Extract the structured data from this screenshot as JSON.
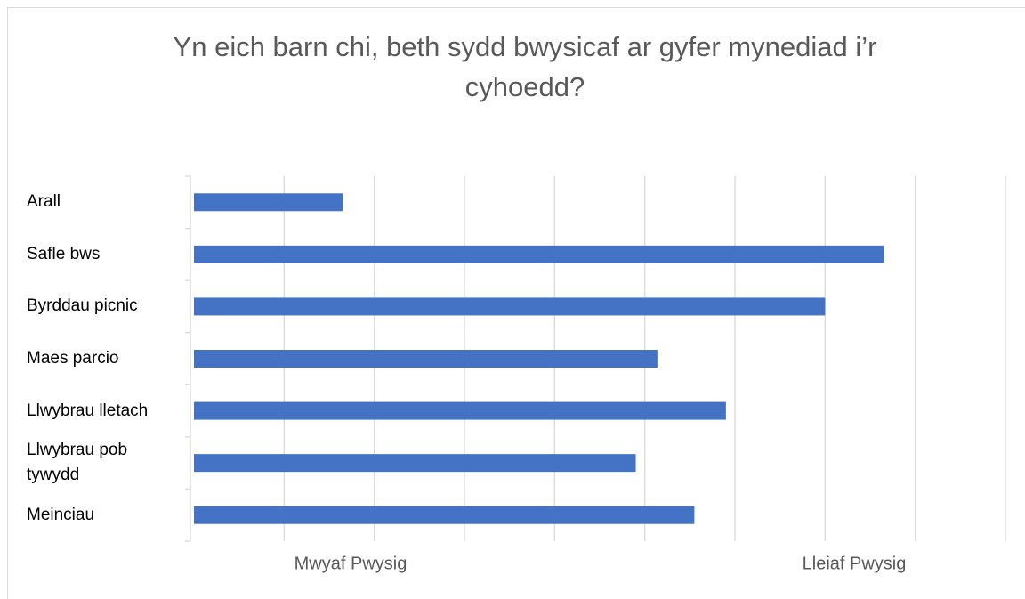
{
  "chart_data": {
    "type": "barh",
    "title": "Yn eich barn chi, beth sydd bwysicaf ar gyfer mynediad i’r cyhoedd?",
    "categories": [
      "Arall",
      "Safle bws",
      "Byrddau picnic",
      "Maes parcio",
      "Llwybrau lletach",
      "Llwybrau pob tywydd",
      "Meinciau"
    ],
    "values": [
      1.65,
      7.65,
      7.0,
      5.14,
      5.9,
      4.9,
      5.55
    ],
    "color": "#4472c4",
    "xlim": [
      0,
      9
    ],
    "xticks": [
      0,
      1,
      2,
      3,
      4,
      5,
      6,
      7,
      8,
      9
    ],
    "grid": true,
    "x_axis_labels": [
      "Mwyaf Pwysig",
      "Lleiaf Pwysig"
    ]
  }
}
